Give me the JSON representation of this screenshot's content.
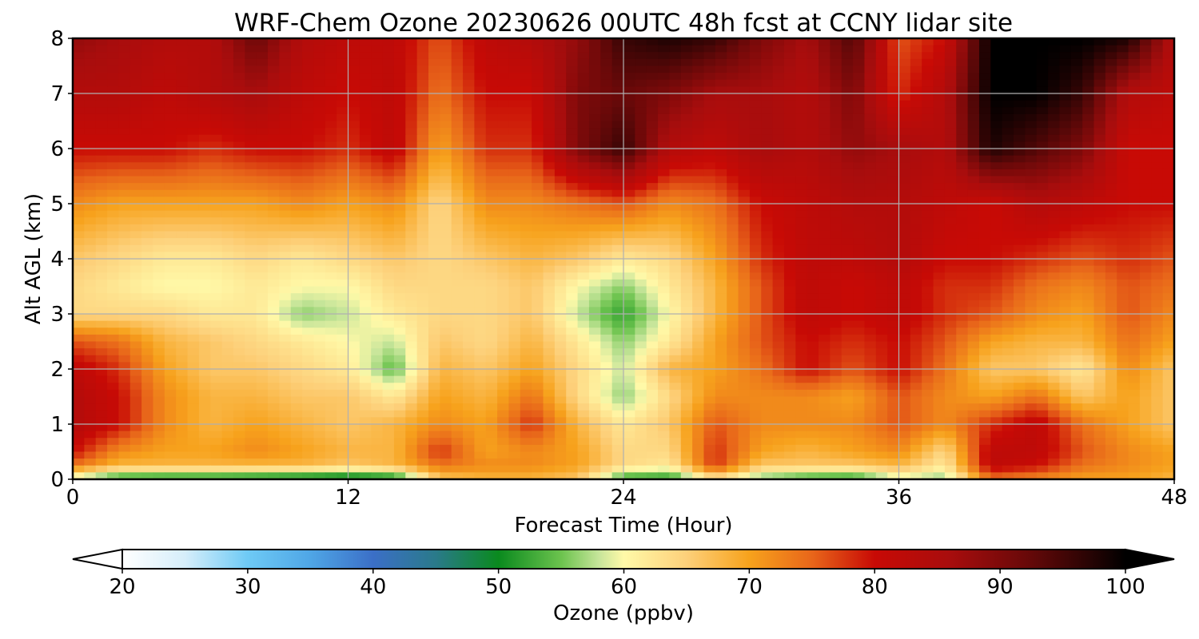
{
  "chart_data": {
    "type": "heatmap",
    "title": "WRF-Chem Ozone  20230626 00UTC 48h fcst at CCNY lidar site",
    "xlabel": "Forecast Time (Hour)",
    "ylabel": "Alt AGL (km)",
    "xlim": [
      0,
      48
    ],
    "ylim": [
      0,
      8
    ],
    "xticks": [
      0,
      12,
      24,
      36,
      48
    ],
    "yticks": [
      0,
      1,
      2,
      3,
      4,
      5,
      6,
      7,
      8
    ],
    "grid": true,
    "x": [
      0,
      2,
      4,
      6,
      8,
      10,
      12,
      14,
      16,
      18,
      20,
      22,
      24,
      26,
      28,
      30,
      32,
      34,
      36,
      38,
      40,
      42,
      44,
      46,
      48
    ],
    "y": [
      0,
      0.25,
      0.5,
      1,
      1.5,
      2,
      2.5,
      3,
      3.5,
      4,
      5,
      6,
      7,
      8
    ],
    "z": [
      [
        57,
        51,
        50,
        50,
        49,
        48,
        47,
        49,
        66,
        68,
        68,
        66,
        52,
        51,
        62,
        55,
        52,
        51,
        58,
        56,
        74,
        72,
        70,
        70,
        68
      ],
      [
        74,
        68,
        68,
        68,
        68,
        68,
        66,
        68,
        74,
        72,
        72,
        70,
        64,
        62,
        78,
        66,
        66,
        66,
        68,
        62,
        82,
        80,
        74,
        72,
        70
      ],
      [
        80,
        72,
        70,
        70,
        72,
        70,
        68,
        68,
        78,
        70,
        72,
        70,
        64,
        64,
        78,
        70,
        68,
        70,
        72,
        64,
        82,
        82,
        76,
        72,
        70
      ],
      [
        84,
        80,
        72,
        68,
        70,
        68,
        66,
        68,
        72,
        70,
        78,
        68,
        62,
        66,
        76,
        72,
        72,
        72,
        76,
        72,
        78,
        82,
        74,
        70,
        66
      ],
      [
        84,
        80,
        72,
        68,
        68,
        66,
        66,
        62,
        70,
        68,
        74,
        64,
        56,
        64,
        72,
        72,
        72,
        70,
        76,
        72,
        70,
        74,
        66,
        70,
        66
      ],
      [
        82,
        78,
        70,
        66,
        66,
        64,
        62,
        54,
        68,
        66,
        70,
        64,
        58,
        68,
        70,
        74,
        80,
        76,
        80,
        74,
        66,
        66,
        62,
        72,
        66
      ],
      [
        76,
        74,
        68,
        66,
        64,
        62,
        60,
        58,
        66,
        64,
        68,
        62,
        56,
        62,
        70,
        76,
        80,
        78,
        80,
        76,
        70,
        68,
        68,
        74,
        70
      ],
      [
        64,
        64,
        64,
        62,
        62,
        56,
        58,
        62,
        64,
        64,
        66,
        58,
        52,
        60,
        68,
        76,
        82,
        80,
        82,
        78,
        76,
        72,
        70,
        76,
        72
      ],
      [
        64,
        62,
        60,
        60,
        62,
        60,
        60,
        64,
        64,
        64,
        66,
        60,
        56,
        62,
        68,
        76,
        82,
        80,
        82,
        78,
        78,
        74,
        72,
        76,
        74
      ],
      [
        66,
        64,
        62,
        62,
        64,
        62,
        64,
        66,
        64,
        66,
        68,
        66,
        62,
        64,
        70,
        78,
        82,
        82,
        84,
        80,
        80,
        78,
        76,
        78,
        76
      ],
      [
        72,
        70,
        70,
        70,
        70,
        72,
        70,
        72,
        64,
        72,
        72,
        74,
        76,
        72,
        74,
        80,
        82,
        84,
        84,
        82,
        80,
        84,
        82,
        80,
        80
      ],
      [
        80,
        80,
        80,
        78,
        80,
        80,
        78,
        82,
        70,
        78,
        78,
        90,
        96,
        84,
        82,
        86,
        84,
        88,
        86,
        84,
        98,
        94,
        90,
        80,
        80
      ],
      [
        84,
        84,
        82,
        84,
        86,
        82,
        80,
        82,
        74,
        80,
        80,
        90,
        92,
        90,
        86,
        86,
        84,
        90,
        78,
        84,
        100,
        100,
        96,
        84,
        82
      ],
      [
        88,
        86,
        84,
        84,
        92,
        84,
        82,
        82,
        76,
        82,
        84,
        88,
        96,
        98,
        96,
        90,
        86,
        94,
        76,
        80,
        100,
        100,
        100,
        98,
        84
      ]
    ],
    "colorbar": {
      "label": "Ozone  (ppbv)",
      "min": 20,
      "max": 100,
      "extend": "both",
      "ticks": [
        20,
        30,
        40,
        50,
        60,
        70,
        80,
        90,
        100
      ],
      "ticklabels": [
        "20",
        "30",
        "40",
        "50",
        "60",
        "70",
        "80",
        "90",
        "100"
      ]
    },
    "colormap": [
      [
        20,
        "#ffffff"
      ],
      [
        25,
        "#d6eefa"
      ],
      [
        30,
        "#6ecaf5"
      ],
      [
        35,
        "#4fa6e6"
      ],
      [
        40,
        "#3b6fc7"
      ],
      [
        45,
        "#2a7a8a"
      ],
      [
        50,
        "#0a8a1e"
      ],
      [
        55,
        "#6cc34e"
      ],
      [
        58,
        "#c6e59a"
      ],
      [
        60,
        "#fff9a8"
      ],
      [
        65,
        "#fdd07a"
      ],
      [
        70,
        "#f7a21c"
      ],
      [
        75,
        "#e8661a"
      ],
      [
        80,
        "#c80a05"
      ],
      [
        86,
        "#a80d0d"
      ],
      [
        92,
        "#6a0909"
      ],
      [
        97,
        "#2a0404"
      ],
      [
        100,
        "#000000"
      ]
    ]
  }
}
